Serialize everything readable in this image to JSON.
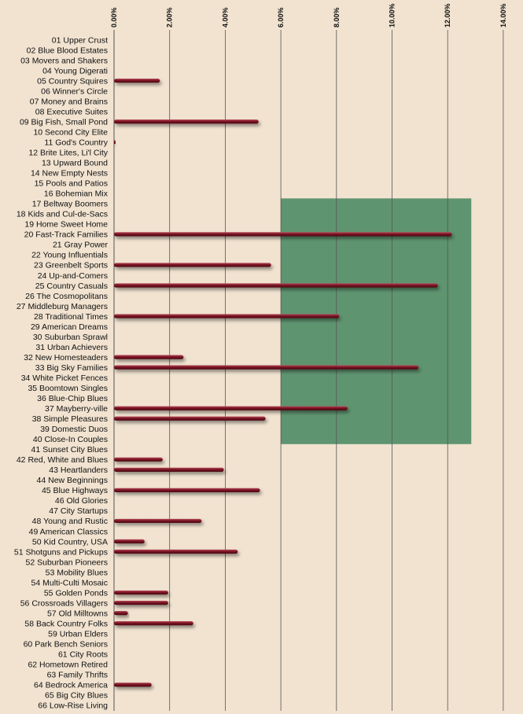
{
  "chart_data": {
    "type": "bar",
    "orientation": "horizontal",
    "title": "",
    "xlabel": "",
    "ylabel": "",
    "xlim": [
      0,
      14
    ],
    "x_tick_labels": [
      "0.00%",
      "2.00%",
      "4.00%",
      "6.00%",
      "8.00%",
      "10.00%",
      "12.00%",
      "14.00%"
    ],
    "x_ticks": [
      0,
      2,
      4,
      6,
      8,
      10,
      12,
      14
    ],
    "axis_position": "top",
    "grid": "vertical",
    "bar_color": "#7a1424",
    "highlight_color": "#5f9470",
    "highlight": {
      "x_range": [
        6.0,
        12.85
      ],
      "categories_from": "17 Beltway Boomers",
      "categories_to": "40 Close-In Couples"
    },
    "categories": [
      "01 Upper Crust",
      "02 Blue Blood Estates",
      "03 Movers and Shakers",
      "04 Young Digerati",
      "05 Country Squires",
      "06 Winner's Circle",
      "07 Money and Brains",
      "08 Executive Suites",
      "09 Big Fish, Small Pond",
      "10 Second City Elite",
      "11 God's Country",
      "12 Brite Lites, Li'l City",
      "13 Upward Bound",
      "14 New Empty Nests",
      "15 Pools and Patios",
      "16 Bohemian Mix",
      "17 Beltway Boomers",
      "18 Kids and Cul-de-Sacs",
      "19 Home Sweet Home",
      "20 Fast-Track Families",
      "21 Gray Power",
      "22 Young Influentials",
      "23 Greenbelt Sports",
      "24 Up-and-Comers",
      "25 Country Casuals",
      "26 The Cosmopolitans",
      "27 Middleburg Managers",
      "28 Traditional Times",
      "29 American Dreams",
      "30 Suburban Sprawl",
      "31 Urban Achievers",
      "32 New Homesteaders",
      "33 Big Sky Families",
      "34 White Picket Fences",
      "35 Boomtown Singles",
      "36 Blue-Chip Blues",
      "37 Mayberry-ville",
      "38 Simple Pleasures",
      "39 Domestic Duos",
      "40 Close-In Couples",
      "41 Sunset City Blues",
      "42 Red, White and Blues",
      "43 Heartlanders",
      "44 New Beginnings",
      "45 Blue Highways",
      "46 Old Glories",
      "47 City Startups",
      "48 Young and Rustic",
      "49 American Classics",
      "50 Kid Country, USA",
      "51 Shotguns  and Pickups",
      "52 Suburban Pioneers",
      "53 Mobility Blues",
      "54 Multi-Culti Mosaic",
      "55 Golden Ponds",
      "56 Crossroads Villagers",
      "57 Old Milltowns",
      "58 Back Country Folks",
      "59 Urban Elders",
      "60 Park Bench Seniors",
      "61 City Roots",
      "62 Hometown Retired",
      "63 Family Thrifts",
      "64 Bedrock America",
      "65 Big City Blues",
      "66 Low-Rise Living"
    ],
    "values": [
      0,
      0,
      0,
      0,
      1.65,
      0,
      0,
      0,
      5.2,
      0,
      0.05,
      0,
      0,
      0,
      0,
      0,
      0,
      0,
      0,
      12.15,
      0,
      0,
      5.65,
      0,
      11.65,
      0,
      0,
      8.1,
      0,
      0,
      0,
      2.5,
      10.95,
      0,
      0,
      0,
      8.4,
      5.45,
      0,
      0,
      0,
      1.75,
      3.95,
      0,
      5.25,
      0,
      0,
      3.15,
      0,
      1.1,
      4.45,
      0,
      0,
      0,
      1.95,
      1.95,
      0.5,
      2.85,
      0,
      0,
      0,
      0,
      0,
      1.35,
      0,
      0
    ]
  }
}
